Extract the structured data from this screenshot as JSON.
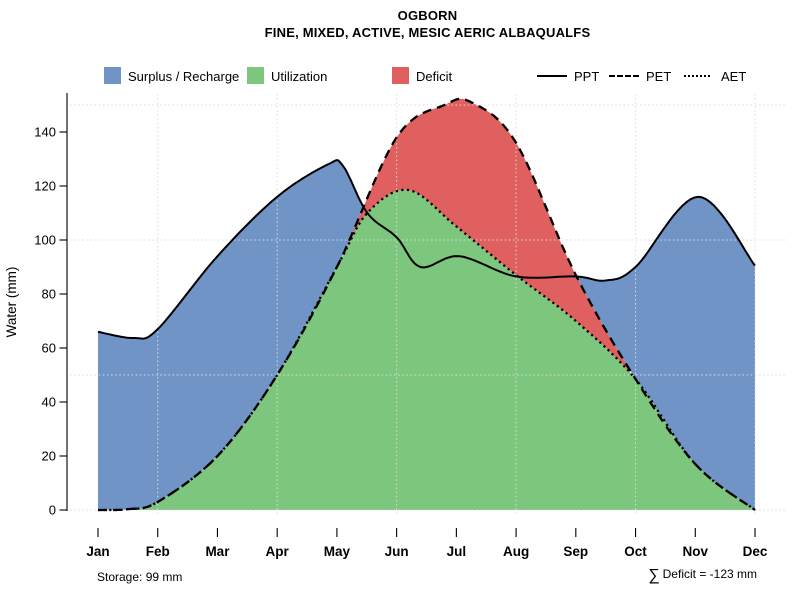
{
  "title": {
    "line1": "OGBORN",
    "line2": "FINE, MIXED, ACTIVE, MESIC AERIC ALBAQUALFS"
  },
  "legend": {
    "areas": [
      {
        "label": "Surplus / Recharge",
        "color": "#7094c6"
      },
      {
        "label": "Utilization",
        "color": "#7dc67d"
      },
      {
        "label": "Deficit",
        "color": "#e05f5f"
      }
    ],
    "lines": [
      {
        "label": "PPT",
        "style": "solid"
      },
      {
        "label": "PET",
        "style": "dashed"
      },
      {
        "label": "AET",
        "style": "dotted"
      }
    ]
  },
  "footnotes": {
    "storage": "Storage: 99 mm",
    "sigma": "∑",
    "deficit": "Deficit = -123 mm"
  },
  "chart_data": {
    "type": "area",
    "title": "OGBORN",
    "subtitle": "FINE, MIXED, ACTIVE, MESIC AERIC ALBAQUALFS",
    "ylabel": "Water (mm)",
    "categories": [
      "Jan",
      "Feb",
      "Mar",
      "Apr",
      "May",
      "Jun",
      "Jul",
      "Aug",
      "Sep",
      "Oct",
      "Nov",
      "Dec"
    ],
    "y_ticks": [
      0,
      20,
      40,
      60,
      80,
      100,
      120,
      140
    ],
    "ylim": [
      0,
      155
    ],
    "grid": {
      "h_lines": [
        0,
        50,
        100,
        150
      ],
      "v_month_indices": [
        1,
        3,
        5,
        7,
        9,
        11
      ],
      "style": "dotted",
      "color": "#dcdcdc"
    },
    "series": [
      {
        "name": "PPT",
        "style": "solid",
        "monthly": [
          66,
          67,
          94,
          116,
          127,
          101,
          94,
          86,
          87,
          90,
          116,
          90
        ],
        "points": [
          [
            0,
            66
          ],
          [
            0.6,
            63.7
          ],
          [
            1,
            67
          ],
          [
            2,
            94
          ],
          [
            3,
            116
          ],
          [
            3.85,
            128
          ],
          [
            4.1,
            127.5
          ],
          [
            4.51,
            110
          ],
          [
            5,
            101
          ],
          [
            5.4,
            90
          ],
          [
            6.05,
            94
          ],
          [
            7,
            86.5
          ],
          [
            8,
            86.5
          ],
          [
            8.5,
            85
          ],
          [
            9,
            90
          ],
          [
            10.05,
            116
          ],
          [
            11,
            90.5
          ]
        ]
      },
      {
        "name": "PET",
        "style": "dashed",
        "monthly": [
          0,
          3,
          20,
          50,
          90,
          138,
          151,
          136,
          87,
          48,
          17,
          0
        ],
        "points": [
          [
            0,
            0
          ],
          [
            0.5,
            0.3
          ],
          [
            1,
            3
          ],
          [
            2,
            20
          ],
          [
            3,
            50
          ],
          [
            4,
            90
          ],
          [
            5,
            138
          ],
          [
            5.8,
            150
          ],
          [
            6.25,
            151
          ],
          [
            7,
            136
          ],
          [
            8,
            87
          ],
          [
            9,
            48.5
          ],
          [
            10,
            17
          ],
          [
            11,
            0
          ]
        ]
      },
      {
        "name": "AET",
        "style": "dotted",
        "monthly": [
          0,
          3,
          20,
          50,
          90,
          118,
          105,
          87,
          70,
          48,
          17,
          0
        ],
        "points": [
          [
            0,
            0
          ],
          [
            0.5,
            0.3
          ],
          [
            1,
            3
          ],
          [
            2,
            20
          ],
          [
            3,
            50
          ],
          [
            4,
            90
          ],
          [
            4.51,
            110
          ],
          [
            5.2,
            118.5
          ],
          [
            6,
            105
          ],
          [
            7,
            87
          ],
          [
            8,
            70
          ],
          [
            9,
            48.5
          ],
          [
            10,
            17
          ],
          [
            11,
            0
          ]
        ]
      }
    ],
    "regions": [
      {
        "name": "Surplus / Recharge",
        "between": [
          "PPT",
          "PET"
        ],
        "color": "#7094c6"
      },
      {
        "name": "Utilization",
        "under": "AET",
        "color": "#7dc67d"
      },
      {
        "name": "Deficit",
        "between": [
          "PET",
          "AET"
        ],
        "color": "#e05f5f"
      }
    ],
    "annotations": {
      "storage_mm": 99,
      "total_deficit_mm": -123
    }
  }
}
